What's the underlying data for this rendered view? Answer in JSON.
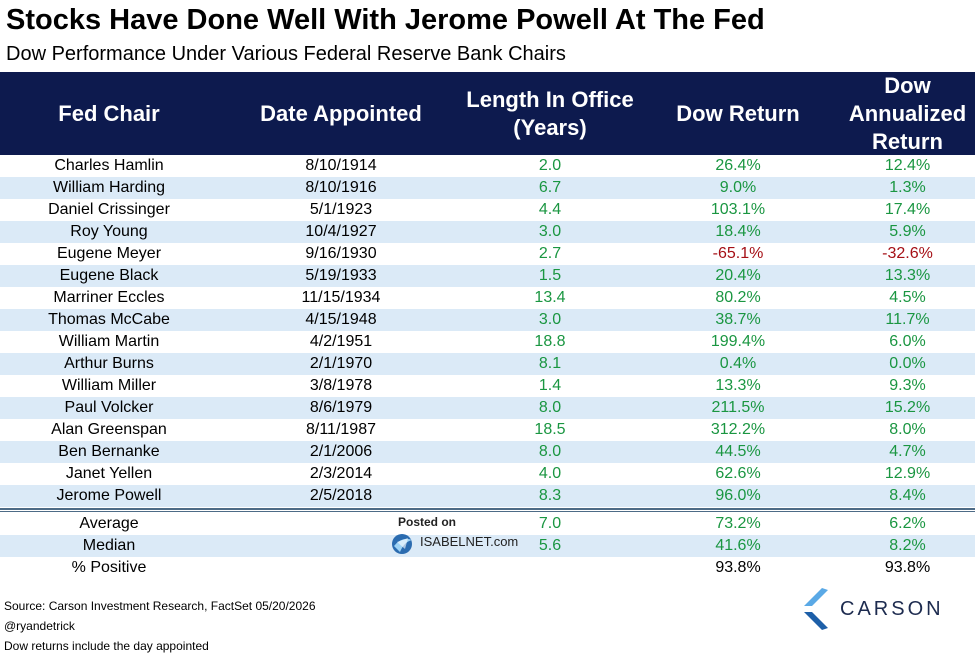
{
  "title": "Stocks Have Done Well With Jerome Powell At The Fed",
  "subtitle": "Dow Performance Under Various Federal Reserve Bank Chairs",
  "colors": {
    "header_bg": "#0d1a4e",
    "alt_row": "#dbeaf7",
    "positive": "#1a9641",
    "negative": "#a50f15"
  },
  "chart_data": {
    "type": "table",
    "columns": [
      "Fed Chair",
      "Date Appointed",
      "Length In Office (Years)",
      "Dow Return",
      "Dow Annualized Return"
    ],
    "rows": [
      [
        "Charles Hamlin",
        "8/10/1914",
        "2.0",
        "26.4%",
        "12.4%"
      ],
      [
        "William Harding",
        "8/10/1916",
        "6.7",
        "9.0%",
        "1.3%"
      ],
      [
        "Daniel Crissinger",
        "5/1/1923",
        "4.4",
        "103.1%",
        "17.4%"
      ],
      [
        "Roy Young",
        "10/4/1927",
        "3.0",
        "18.4%",
        "5.9%"
      ],
      [
        "Eugene Meyer",
        "9/16/1930",
        "2.7",
        "-65.1%",
        "-32.6%"
      ],
      [
        "Eugene Black",
        "5/19/1933",
        "1.5",
        "20.4%",
        "13.3%"
      ],
      [
        "Marriner Eccles",
        "11/15/1934",
        "13.4",
        "80.2%",
        "4.5%"
      ],
      [
        "Thomas McCabe",
        "4/15/1948",
        "3.0",
        "38.7%",
        "11.7%"
      ],
      [
        "William Martin",
        "4/2/1951",
        "18.8",
        "199.4%",
        "6.0%"
      ],
      [
        "Arthur Burns",
        "2/1/1970",
        "8.1",
        "0.4%",
        "0.0%"
      ],
      [
        "William Miller",
        "3/8/1978",
        "1.4",
        "13.3%",
        "9.3%"
      ],
      [
        "Paul Volcker",
        "8/6/1979",
        "8.0",
        "211.5%",
        "15.2%"
      ],
      [
        "Alan Greenspan",
        "8/11/1987",
        "18.5",
        "312.2%",
        "8.0%"
      ],
      [
        "Ben Bernanke",
        "2/1/2006",
        "8.0",
        "44.5%",
        "4.7%"
      ],
      [
        "Janet Yellen",
        "2/3/2014",
        "4.0",
        "62.6%",
        "12.9%"
      ],
      [
        "Jerome Powell",
        "2/5/2018",
        "8.3",
        "96.0%",
        "8.4%"
      ]
    ],
    "summary": [
      [
        "Average",
        "",
        "7.0",
        "73.2%",
        "6.2%"
      ],
      [
        "Median",
        "",
        "5.6",
        "41.6%",
        "8.2%"
      ],
      [
        "% Positive",
        "",
        "",
        "93.8%",
        "93.8%"
      ]
    ]
  },
  "header": {
    "col1": "Fed Chair",
    "col2": "Date Appointed",
    "col3_line1": "Length In Office",
    "col3_line2": "(Years)",
    "col4": "Dow Return",
    "col5_line1": "Dow",
    "col5_line2": "Annualized",
    "col5_line3": "Return"
  },
  "footer": {
    "source": "Source: Carson Investment Research, FactSet 05/20/2026",
    "handle": "@ryandetrick",
    "note": "Dow returns include the day appointed"
  },
  "watermark": {
    "posted": "Posted on",
    "site": "ISABELNET.com"
  },
  "logo": {
    "text": "CARSON"
  }
}
